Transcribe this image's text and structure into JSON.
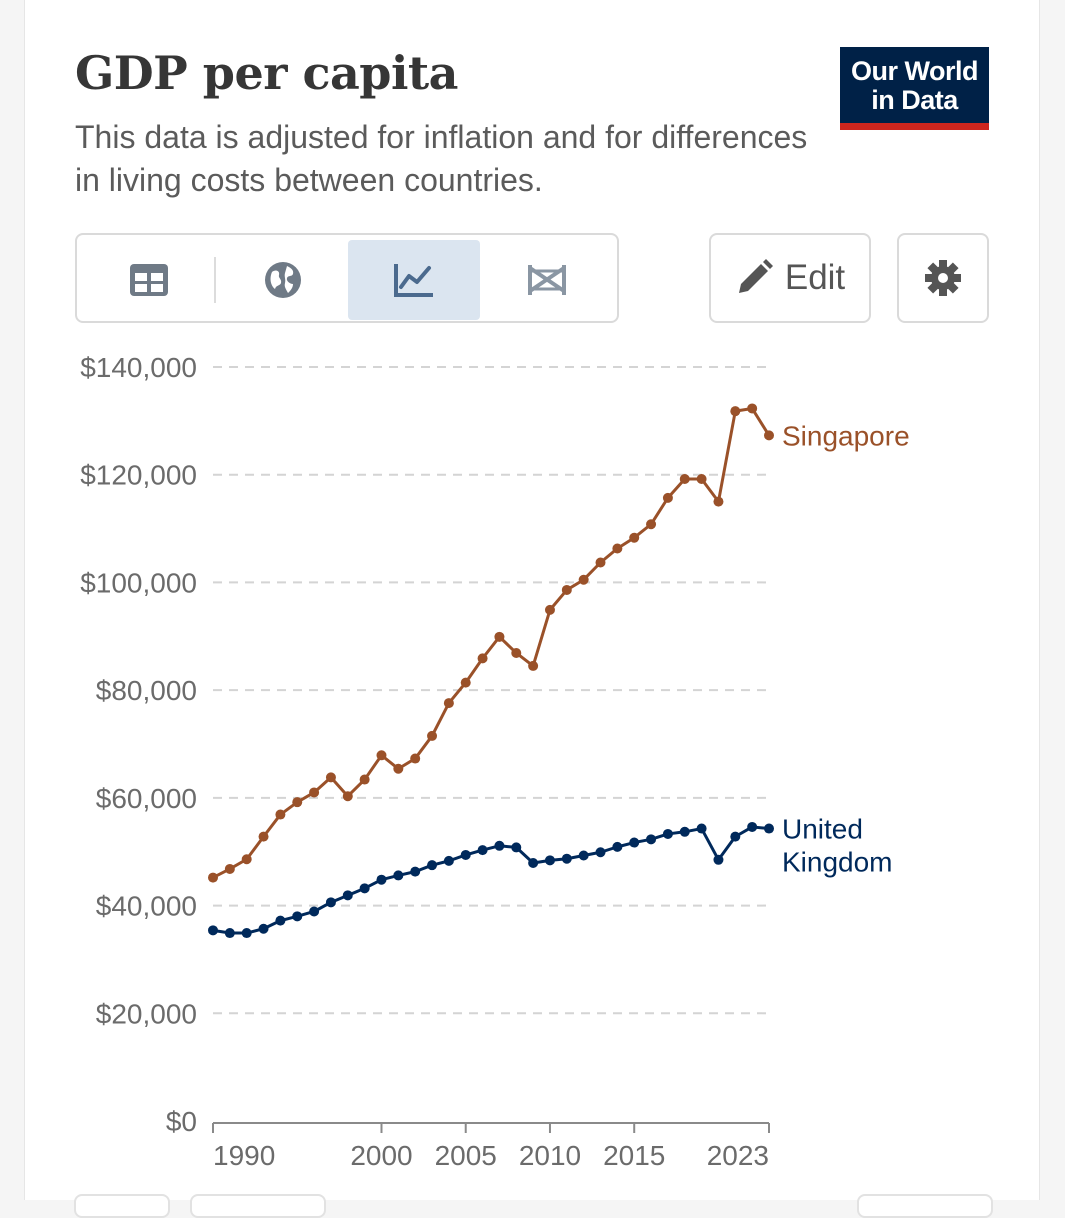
{
  "header": {
    "title": "GDP per capita",
    "subtitle": "This data is adjusted for inflation and for differences in living costs between countries.",
    "logo_line1": "Our World",
    "logo_line2": "in Data"
  },
  "toolbar": {
    "tabs": [
      {
        "name": "table",
        "icon": "table-icon"
      },
      {
        "name": "map",
        "icon": "globe-icon"
      },
      {
        "name": "chart",
        "icon": "line-chart-icon",
        "active": true
      },
      {
        "name": "slope",
        "icon": "slope-chart-icon"
      }
    ],
    "edit_label": "Edit",
    "settings_icon": "gear-icon"
  },
  "colors": {
    "singapore": "#9a5129",
    "united_kingdom": "#00295b",
    "logo_bg": "#002147",
    "logo_accent": "#ce261e",
    "active_tab": "#dbe5f0"
  },
  "chart_data": {
    "type": "line",
    "title": "GDP per capita",
    "xlabel": "",
    "ylabel": "",
    "ylim": [
      0,
      140000
    ],
    "xlim": [
      1990,
      2023
    ],
    "yticks": [
      0,
      20000,
      40000,
      60000,
      80000,
      100000,
      120000,
      140000
    ],
    "ytick_labels": [
      "$0",
      "$20,000",
      "$40,000",
      "$60,000",
      "$80,000",
      "$100,000",
      "$120,000",
      "$140,000"
    ],
    "xticks": [
      1990,
      2000,
      2005,
      2010,
      2015,
      2023
    ],
    "xtick_labels": [
      "1990",
      "2000",
      "2005",
      "2010",
      "2015",
      "2023"
    ],
    "grid": "horizontal dashed",
    "x": [
      1990,
      1991,
      1992,
      1993,
      1994,
      1995,
      1996,
      1997,
      1998,
      1999,
      2000,
      2001,
      2002,
      2003,
      2004,
      2005,
      2006,
      2007,
      2008,
      2009,
      2010,
      2011,
      2012,
      2013,
      2014,
      2015,
      2016,
      2017,
      2018,
      2019,
      2020,
      2021,
      2022,
      2023
    ],
    "series": [
      {
        "name": "Singapore",
        "label_lines": [
          "Singapore"
        ],
        "color": "#9a5129",
        "values": [
          45200,
          46800,
          48600,
          52800,
          56900,
          59200,
          61000,
          63800,
          60300,
          63400,
          67900,
          65400,
          67300,
          71500,
          77600,
          81400,
          85900,
          89900,
          86900,
          84500,
          94900,
          98600,
          100500,
          103700,
          106300,
          108300,
          110800,
          115700,
          119200,
          119200,
          115000,
          131800,
          132300,
          127300
        ]
      },
      {
        "name": "United Kingdom",
        "label_lines": [
          "United",
          "Kingdom"
        ],
        "color": "#00295b",
        "values": [
          35400,
          34900,
          34900,
          35700,
          37200,
          38000,
          38900,
          40600,
          41900,
          43200,
          44800,
          45600,
          46300,
          47500,
          48300,
          49400,
          50300,
          51100,
          50800,
          47900,
          48400,
          48700,
          49300,
          49900,
          50900,
          51700,
          52300,
          53300,
          53700,
          54300,
          48500,
          52800,
          54600,
          54300
        ]
      }
    ]
  }
}
